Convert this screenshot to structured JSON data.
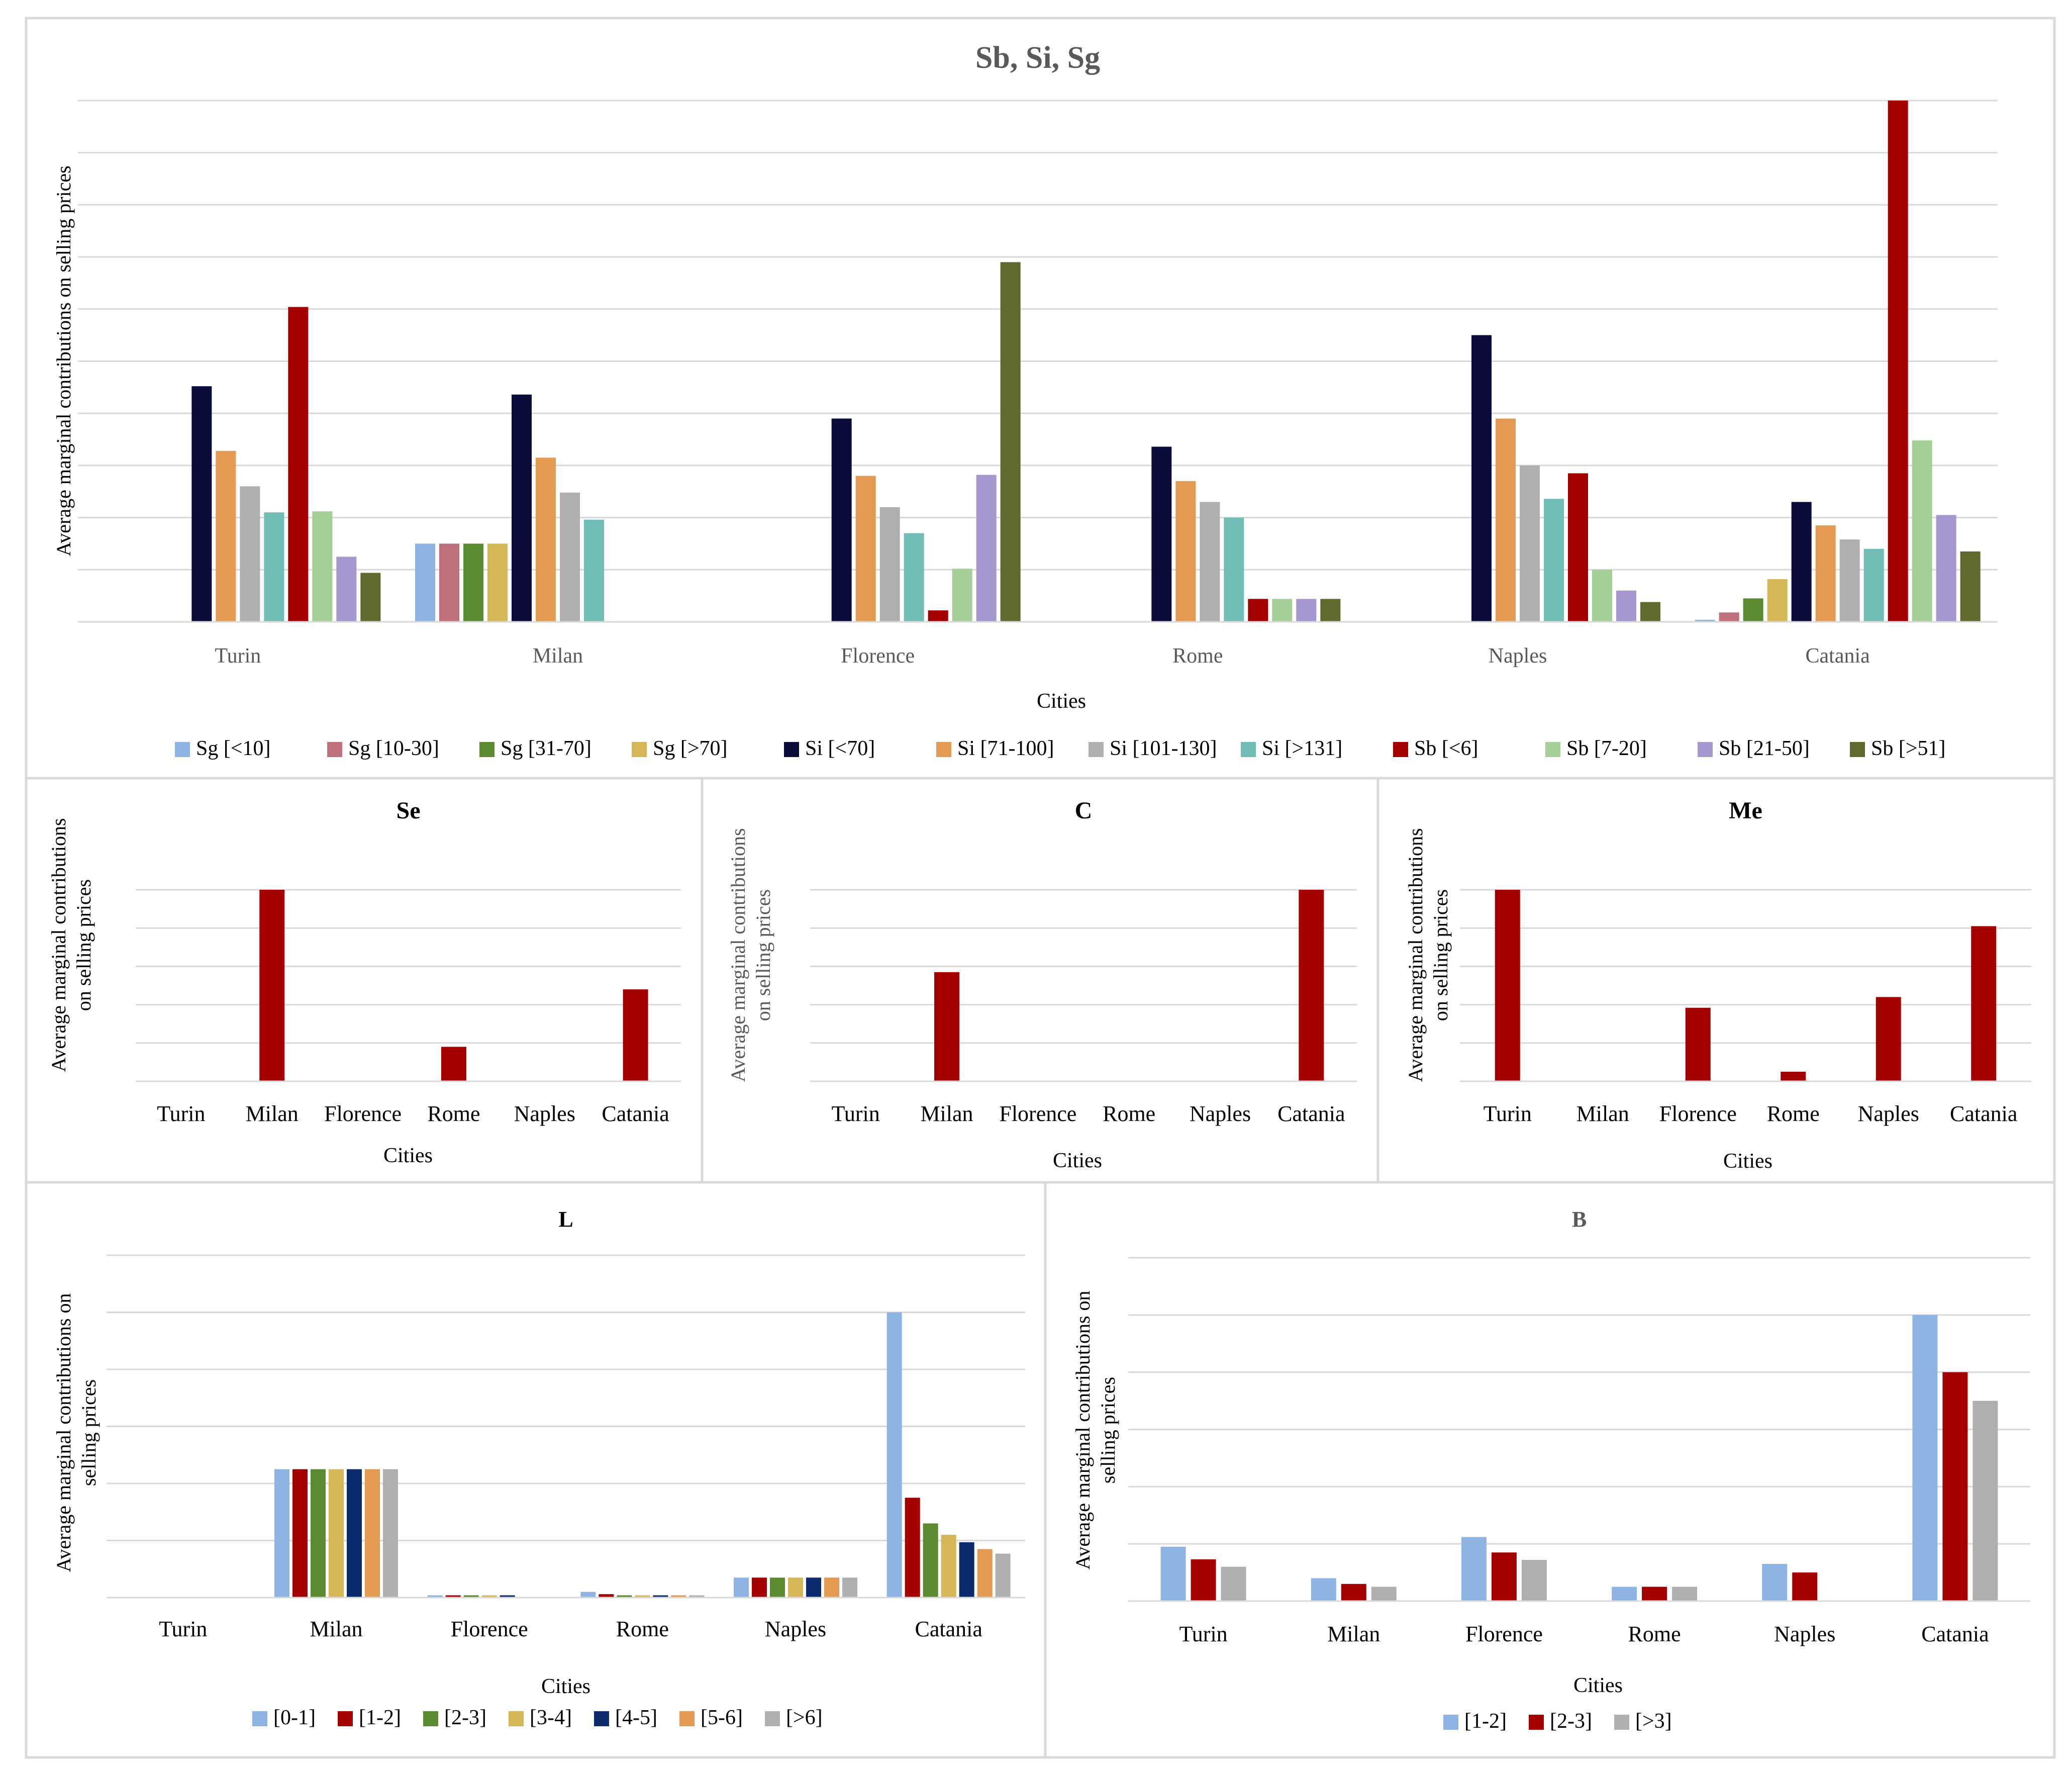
{
  "chart_data": [
    {
      "id": "sbsisg",
      "type": "bar",
      "title": "Sb, Si, Sg",
      "xlabel": "Cities",
      "ylabel": "Average marginal contributions on selling prices",
      "categories": [
        "Turin",
        "Milan",
        "Florence",
        "Rome",
        "Naples",
        "Catania"
      ],
      "ylim": [
        0,
        10
      ],
      "grid": true,
      "legend_position": "bottom",
      "series": [
        {
          "name": "Sg [<10]",
          "color": "#8eb4e3",
          "values": [
            0,
            1.5,
            0,
            0,
            0,
            0.04
          ]
        },
        {
          "name": "Sg [10-30]",
          "color": "#c0707a",
          "values": [
            0,
            1.5,
            0,
            0,
            0,
            0.18
          ]
        },
        {
          "name": "Sg [31-70]",
          "color": "#5b8a31",
          "values": [
            0,
            1.5,
            0,
            0,
            0,
            0.45
          ]
        },
        {
          "name": "Sg [>70]",
          "color": "#d6b656",
          "values": [
            0,
            1.5,
            0,
            0,
            0,
            0.82
          ]
        },
        {
          "name": "Si [<70]",
          "color": "#0c0c3c",
          "values": [
            4.52,
            4.36,
            3.9,
            3.36,
            5.5,
            2.3
          ]
        },
        {
          "name": "Si [71-100]",
          "color": "#e49a52",
          "values": [
            3.28,
            3.15,
            2.8,
            2.7,
            3.9,
            1.85
          ]
        },
        {
          "name": "Si [101-130]",
          "color": "#afafaf",
          "values": [
            2.6,
            2.48,
            2.2,
            2.3,
            3.0,
            1.58
          ]
        },
        {
          "name": "Si [>131]",
          "color": "#6fbdb5",
          "values": [
            2.1,
            1.96,
            1.7,
            2.0,
            2.36,
            1.4
          ]
        },
        {
          "name": "Sb [<6]",
          "color": "#a50000",
          "values": [
            6.04,
            0,
            0.22,
            0.44,
            2.85,
            10.0
          ]
        },
        {
          "name": "Sb [7-20]",
          "color": "#a6cf98",
          "values": [
            2.12,
            0,
            1.02,
            0.44,
            1.0,
            3.48
          ]
        },
        {
          "name": "Sb [21-50]",
          "color": "#a797cf",
          "values": [
            1.25,
            0,
            2.82,
            0.44,
            0.6,
            2.05
          ]
        },
        {
          "name": "Sb [>51]",
          "color": "#61692e",
          "values": [
            0.94,
            0,
            6.9,
            0.44,
            0.38,
            1.35
          ]
        }
      ]
    },
    {
      "id": "se",
      "type": "bar",
      "title": "Se",
      "xlabel": "Cities",
      "ylabel": [
        "Average marginal contributions",
        "on selling prices"
      ],
      "categories": [
        "Turin",
        "Milan",
        "Florence",
        "Rome",
        "Naples",
        "Catania"
      ],
      "ylim": [
        0,
        5
      ],
      "grid": true,
      "series": [
        {
          "color": "#a50000",
          "values": [
            0,
            5.0,
            0,
            0.9,
            0,
            2.4
          ]
        }
      ]
    },
    {
      "id": "c",
      "type": "bar",
      "title": "C",
      "xlabel": "Cities",
      "ylabel": [
        "Average marginal contributions",
        "on selling prices"
      ],
      "categories": [
        "Turin",
        "Milan",
        "Florence",
        "Rome",
        "Naples",
        "Catania"
      ],
      "ylim": [
        0,
        5
      ],
      "grid": true,
      "series": [
        {
          "color": "#a50000",
          "values": [
            0,
            2.85,
            0,
            0,
            0,
            5.0
          ]
        }
      ]
    },
    {
      "id": "me",
      "type": "bar",
      "title": "Me",
      "xlabel": "Cities",
      "ylabel": [
        "Average marginal contributions",
        "on selling prices"
      ],
      "categories": [
        "Turin",
        "Milan",
        "Florence",
        "Rome",
        "Naples",
        "Catania"
      ],
      "ylim": [
        0,
        5
      ],
      "grid": true,
      "series": [
        {
          "color": "#a50000",
          "values": [
            5.0,
            0,
            1.92,
            0.25,
            2.2,
            4.05
          ]
        }
      ]
    },
    {
      "id": "l",
      "type": "bar",
      "title": "L",
      "xlabel": "Cities",
      "ylabel": [
        "Average marginal contributions on",
        "selling prices"
      ],
      "categories": [
        "Turin",
        "Milan",
        "Florence",
        "Rome",
        "Naples",
        "Catania"
      ],
      "ylim": [
        0,
        6
      ],
      "grid": true,
      "legend_position": "bottom",
      "series": [
        {
          "name": "[0-1]",
          "color": "#8eb4e3",
          "values": [
            0,
            2.25,
            0.04,
            0.1,
            0.35,
            5.0
          ]
        },
        {
          "name": "[1-2]",
          "color": "#a50000",
          "values": [
            0,
            2.25,
            0.04,
            0.06,
            0.35,
            1.75
          ]
        },
        {
          "name": "[2-3]",
          "color": "#5b8a31",
          "values": [
            0,
            2.25,
            0.04,
            0.04,
            0.35,
            1.3
          ]
        },
        {
          "name": "[3-4]",
          "color": "#d6b656",
          "values": [
            0,
            2.25,
            0.04,
            0.04,
            0.35,
            1.1
          ]
        },
        {
          "name": "[4-5]",
          "color": "#0c2a6e",
          "values": [
            0,
            2.25,
            0.04,
            0.04,
            0.35,
            0.97
          ]
        },
        {
          "name": "[5-6]",
          "color": "#e49a52",
          "values": [
            0,
            2.25,
            0.0,
            0.04,
            0.35,
            0.85
          ]
        },
        {
          "name": "[>6]",
          "color": "#afafaf",
          "values": [
            0,
            2.25,
            0.0,
            0.04,
            0.35,
            0.77
          ]
        }
      ]
    },
    {
      "id": "b",
      "type": "bar",
      "title": "B",
      "xlabel": "Cities",
      "ylabel": [
        "Average marginal contributions on",
        "selling prices"
      ],
      "categories": [
        "Turin",
        "Milan",
        "Florence",
        "Rome",
        "Naples",
        "Catania"
      ],
      "ylim": [
        0,
        6
      ],
      "grid": true,
      "legend_position": "bottom",
      "series": [
        {
          "name": "[1-2]",
          "color": "#8eb4e3",
          "values": [
            0.95,
            0.4,
            1.12,
            0.25,
            0.65,
            5.0
          ]
        },
        {
          "name": "[2-3]",
          "color": "#a50000",
          "values": [
            0.73,
            0.3,
            0.85,
            0.25,
            0.5,
            4.0
          ]
        },
        {
          "name": "[>3]",
          "color": "#afafaf",
          "values": [
            0.6,
            0.25,
            0.72,
            0.25,
            0,
            3.5
          ]
        }
      ]
    }
  ]
}
